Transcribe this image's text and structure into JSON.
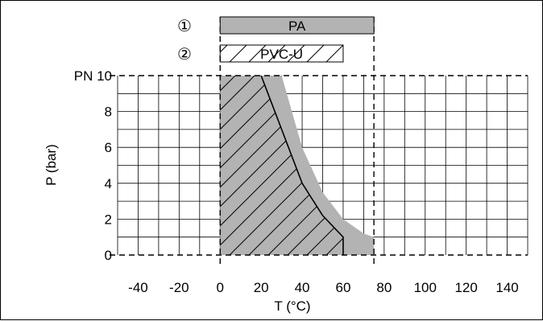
{
  "chart_data": {
    "type": "area",
    "xlabel": "T (°C)",
    "ylabel": "P (bar)",
    "xlim": [
      -50,
      150
    ],
    "ylim": [
      0,
      10
    ],
    "x_ticks": [
      -40,
      -20,
      0,
      20,
      40,
      60,
      80,
      100,
      120,
      140
    ],
    "y_ticks": [
      0,
      2,
      4,
      6,
      8,
      10
    ],
    "y_tick_labels": [
      "0",
      "2",
      "4",
      "6",
      "8",
      "PN 10"
    ],
    "grid": true,
    "colors": {
      "pa_fill": "#b3b3b3",
      "line": "#000000",
      "grid": "#000000"
    },
    "series": [
      {
        "name": "PA",
        "marker": "①",
        "pattern": "solid-gray",
        "temp_range": [
          0,
          75
        ],
        "points": [
          [
            0,
            10
          ],
          [
            30,
            10
          ],
          [
            40,
            6
          ],
          [
            50,
            3.5
          ],
          [
            60,
            2
          ],
          [
            70,
            1.2
          ],
          [
            75,
            1
          ],
          [
            75,
            0
          ],
          [
            0,
            0
          ]
        ]
      },
      {
        "name": "PVC-U",
        "marker": "②",
        "pattern": "hatched",
        "temp_range": [
          0,
          60
        ],
        "points": [
          [
            0,
            10
          ],
          [
            20,
            10
          ],
          [
            30,
            7
          ],
          [
            40,
            4
          ],
          [
            50,
            2.2
          ],
          [
            60,
            1
          ],
          [
            60,
            0
          ],
          [
            0,
            0
          ]
        ]
      }
    ]
  }
}
